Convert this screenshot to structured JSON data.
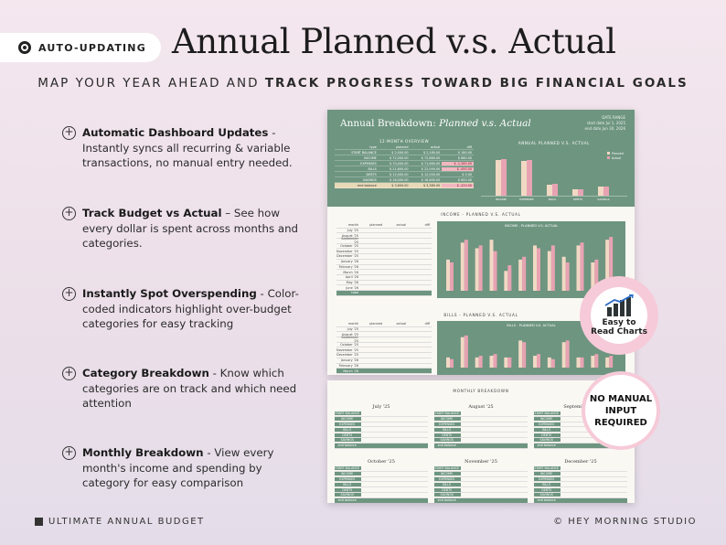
{
  "badge": {
    "label": "AUTO-UPDATING",
    "icon": "gear-icon"
  },
  "title": "Annual Planned v.s. Actual",
  "subtitle": {
    "part1": "MAP YOUR YEAR AHEAD AND ",
    "part2": "TRACK PROGRESS TOWARD BIG FINANCIAL GOALS"
  },
  "features": [
    {
      "bold": "Automatic Dashboard Updates",
      "text": " - Instantly syncs all recurring & variable transactions, no manual entry needed."
    },
    {
      "bold": "Track Budget vs Actual",
      "text": " – See how every dollar is spent across months and categories."
    },
    {
      "bold": "Instantly Spot Overspending",
      "text": " - Color-coded indicators highlight over-budget categories for easy tracking"
    },
    {
      "bold": "Category Breakdown",
      "text": " - Know which categories are on track and which need attention"
    },
    {
      "bold": "Monthly Breakdown",
      "text": " - View every month's income and spending by category for easy comparison"
    }
  ],
  "footer": {
    "left": "ULTIMATE ANNUAL BUDGET",
    "right": "© HEY MORNING STUDIO"
  },
  "sheet": {
    "heading_plain": "Annual Breakdown: ",
    "heading_italic": "Planned v.s. Actual",
    "date_label": "DATE RANGE",
    "start_label": "start date",
    "start_value": "Jul 1, 2025",
    "end_label": "end date",
    "end_value": "Jun 30, 2026",
    "overview_title": "12-MONTH OVERVIEW",
    "overview_headers": [
      "type",
      "planned",
      "actual",
      "diff"
    ],
    "overview_rows": [
      [
        "START BALANCE",
        "$ 2,000.00",
        "$ 2,180.00",
        "$ 180.00"
      ],
      [
        "INCOME",
        "$ 72,000.00",
        "$ 72,860.00",
        "$ 860.00"
      ],
      [
        "EXPENSES",
        "$ 70,400.00",
        "$ 71,660.00",
        "$ -1,260.00"
      ],
      [
        "BILLS",
        "$ 21,600.00",
        "$ 22,090.00",
        "$ -490.00"
      ],
      [
        "DEBTS",
        "$ 12,000.00",
        "$ 12,000.00",
        "$ 0.00"
      ],
      [
        "SAVINGS",
        "$ 18,000.00",
        "$ 18,600.00",
        "$ 600.00"
      ],
      [
        "end balance",
        "$ 3,600.00",
        "$ 3,380.00",
        "$ -220.00"
      ]
    ],
    "chart_title": "ANNUAL PLANNED V.S. ACTUAL",
    "legend": [
      "Planned",
      "Actual"
    ],
    "chart_categories": [
      "INCOME",
      "EXPENSES",
      "BILLS",
      "DEBTS",
      "SAVINGS"
    ],
    "income_title": "INCOME - PLANNED V.S. ACTUAL",
    "bills_title": "BILLS - PLANNED V.S. ACTUAL",
    "table_headers": [
      "month",
      "planned",
      "actual",
      "diff"
    ],
    "months": [
      "July '25",
      "August '25",
      "September '25",
      "October '25",
      "November '25",
      "December '25",
      "January '26",
      "February '26",
      "March '26",
      "April '26",
      "May '26",
      "June '26",
      "total"
    ],
    "monthly_title": "MONTHLY BREAKDOWN",
    "month_blocks": [
      "July '25",
      "August '25",
      "September '25",
      "October '25",
      "November '25",
      "December '25"
    ],
    "block_rows": [
      "START BALANCE",
      "INCOME",
      "EXPENSES",
      "BILLS",
      "DEBTS",
      "SAVINGS",
      "end balance"
    ]
  },
  "callouts": {
    "charts": "Easy to Read Charts",
    "no_input_1": "NO MANUAL",
    "no_input_2": "INPUT",
    "no_input_3": "REQUIRED"
  },
  "colors": {
    "sheet_green": "#6e9580",
    "planned_bar": "#f1d9c4",
    "actual_bar": "#e8a3b3",
    "pink_circle": "#f6cad8"
  }
}
